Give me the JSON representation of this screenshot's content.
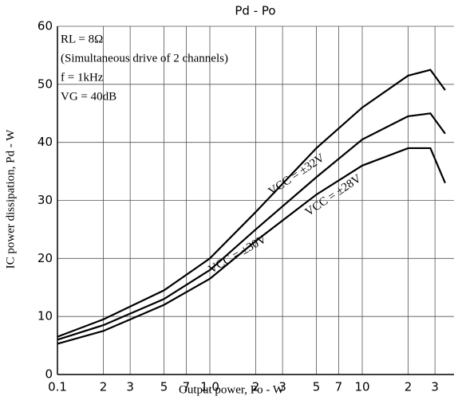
{
  "chart_data": {
    "type": "line",
    "title": "Pd - Po",
    "x_label": "Output power, Po - W",
    "y_label": "IC power dissipation, Pd - W",
    "annotations": [
      "RL = 8Ω",
      "(Simultaneous drive of 2 channels)",
      "f = 1kHz",
      "VG = 40dB"
    ],
    "x": [
      0.1,
      0.2,
      0.5,
      1,
      2,
      5,
      10,
      20,
      28,
      35
    ],
    "series": [
      {
        "name": "VCC = ±32V",
        "color": "#000000",
        "values": [
          6.5,
          9.5,
          14.5,
          20,
          28,
          39,
          46,
          51.5,
          52.5,
          49
        ]
      },
      {
        "name": "VCC = ±30V",
        "color": "#000000",
        "values": [
          6,
          8.5,
          13,
          18,
          25,
          34,
          40.5,
          44.5,
          45,
          41.5
        ]
      },
      {
        "name": "VCC = ±28V",
        "color": "#000000",
        "values": [
          5.3,
          7.5,
          12,
          16.5,
          23,
          31,
          36,
          39,
          39,
          33
        ]
      }
    ],
    "log_x": true,
    "xlim": [
      0.1,
      40
    ],
    "xticks": [
      0.1,
      {
        "value": 0.2,
        "label": "2"
      },
      {
        "value": 0.3,
        "label": "3"
      },
      {
        "value": 0.5,
        "label": "5"
      },
      {
        "value": 0.7,
        "label": "7"
      },
      {
        "value": 1,
        "label": "1.0"
      },
      {
        "value": 2,
        "label": "2"
      },
      {
        "value": 3,
        "label": "3"
      },
      {
        "value": 5,
        "label": "5"
      },
      {
        "value": 7,
        "label": "7"
      },
      10,
      {
        "value": 20,
        "label": "2"
      },
      {
        "value": 30,
        "label": "3"
      }
    ],
    "ylim": [
      0,
      60
    ],
    "yticks": [
      0,
      10,
      20,
      30,
      40,
      50,
      60
    ],
    "grid": true
  }
}
